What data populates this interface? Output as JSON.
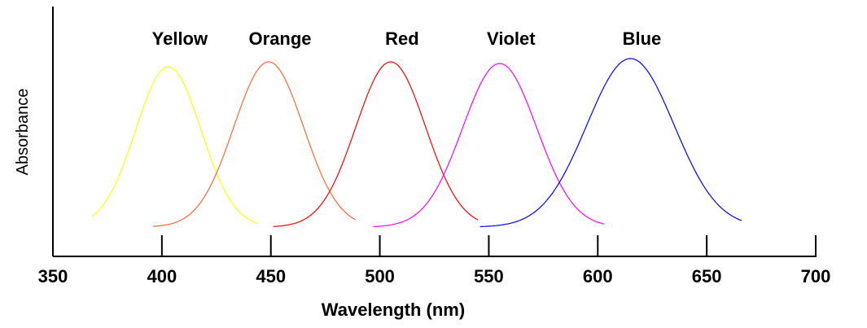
{
  "chart_data": {
    "type": "line",
    "title": "",
    "xlabel": "Wavelength (nm)",
    "ylabel": "Absorbance",
    "xlim": [
      350,
      700
    ],
    "ylim": [
      0,
      1
    ],
    "x_ticks": [
      350,
      400,
      450,
      500,
      550,
      600,
      650,
      700
    ],
    "grid": false,
    "legend": "labels above peaks",
    "series": [
      {
        "name": "Yellow",
        "color": "#ffff00",
        "peak_nm": 403,
        "peak_abs": 0.97,
        "sigma_nm": 15,
        "range_nm": [
          368,
          444
        ]
      },
      {
        "name": "Orange",
        "color": "#ff6633",
        "peak_nm": 449,
        "peak_abs": 1.0,
        "sigma_nm": 16,
        "range_nm": [
          396,
          489
        ]
      },
      {
        "name": "Red",
        "color": "#ff0000",
        "peak_nm": 505,
        "peak_abs": 1.0,
        "sigma_nm": 16,
        "range_nm": [
          451,
          545
        ]
      },
      {
        "name": "Violet",
        "color": "#ff00ff",
        "peak_nm": 555,
        "peak_abs": 0.99,
        "sigma_nm": 17,
        "range_nm": [
          497,
          603
        ]
      },
      {
        "name": "Blue",
        "color": "#0000ff",
        "peak_nm": 615,
        "peak_abs": 1.02,
        "sigma_nm": 20,
        "range_nm": [
          546,
          666
        ]
      }
    ]
  }
}
